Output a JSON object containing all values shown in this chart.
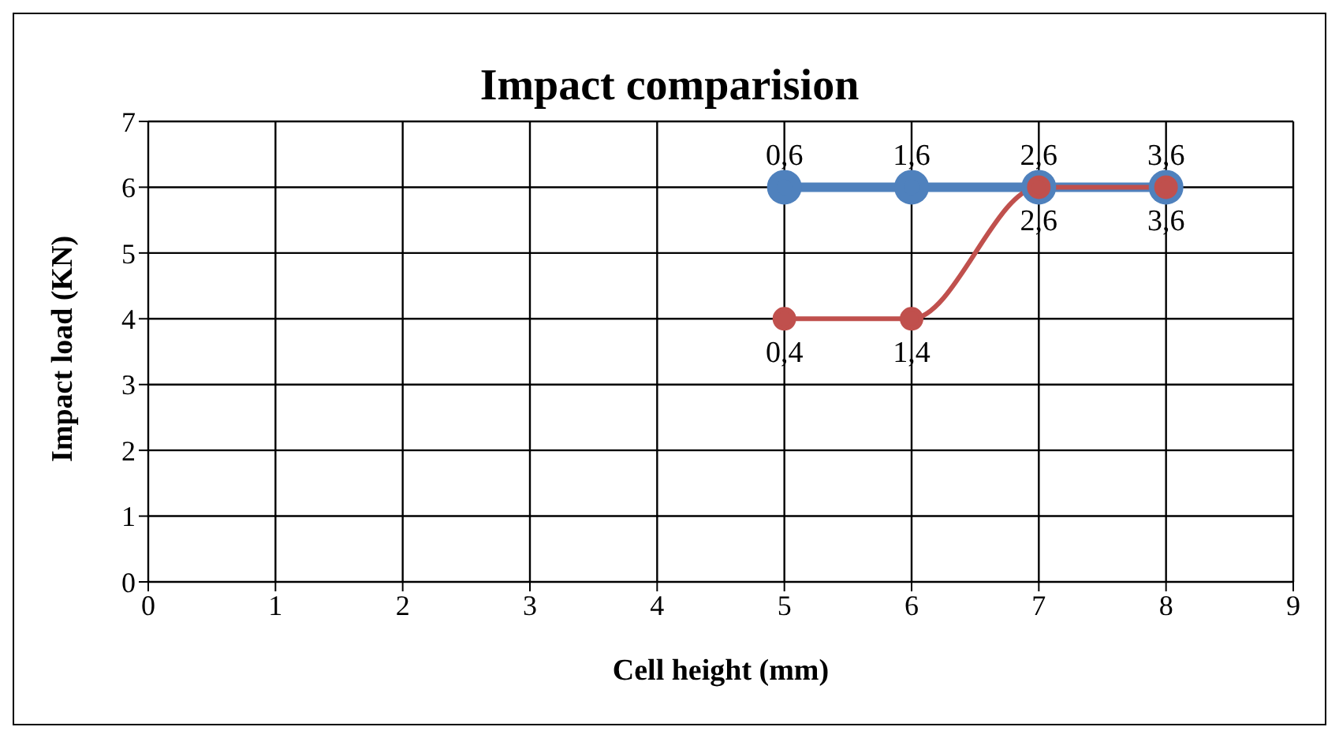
{
  "chart_data": {
    "type": "line",
    "title": "Impact comparision",
    "xlabel": "Cell height (mm)",
    "ylabel": "Impact load (KN)",
    "x": [
      5,
      6,
      7,
      8
    ],
    "series": [
      {
        "color": "#4f81bd",
        "values": [
          6,
          6,
          6,
          6
        ]
      },
      {
        "color": "#c0504d",
        "values": [
          4,
          4,
          6,
          6
        ]
      }
    ],
    "annotations": [
      {
        "text": "0,6",
        "x": 5,
        "y": 6
      },
      {
        "text": "1,6",
        "x": 6,
        "y": 6
      },
      {
        "text": "2,6",
        "x": 7,
        "y": 6
      },
      {
        "text": "3,6",
        "x": 8,
        "y": 6
      },
      {
        "text": "0,4",
        "x": 5,
        "y": 4
      },
      {
        "text": "1,4",
        "x": 6,
        "y": 4
      },
      {
        "text": "2,6",
        "x": 7,
        "y": 6
      },
      {
        "text": "3,6",
        "x": 8,
        "y": 6
      }
    ],
    "xlim": [
      0,
      9
    ],
    "xticks": [
      0,
      1,
      2,
      3,
      4,
      5,
      6,
      7,
      8,
      9
    ],
    "ylim": [
      0,
      7
    ],
    "yticks": [
      0,
      1,
      2,
      3,
      4,
      5,
      6,
      7
    ],
    "grid": true,
    "marker": "circle",
    "line_style": "solid"
  }
}
